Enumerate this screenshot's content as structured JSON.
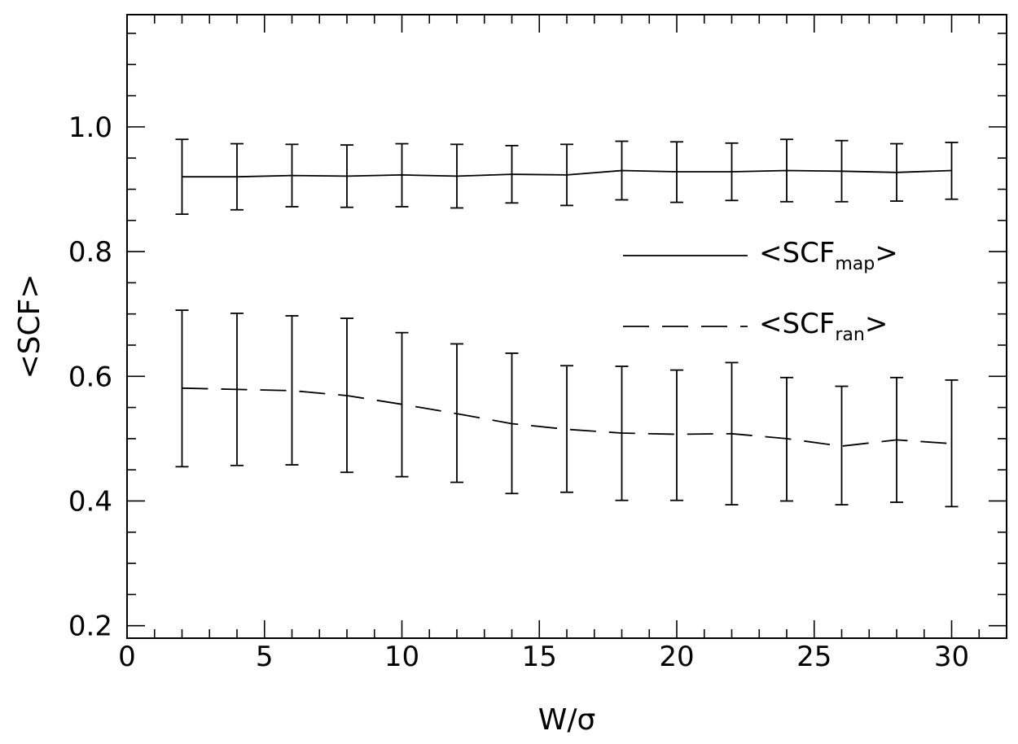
{
  "chart_data": {
    "type": "line",
    "xlabel": "W/σ",
    "ylabel": "<SCF>",
    "xlim": [
      0,
      32
    ],
    "ylim": [
      0.18,
      1.18
    ],
    "x_ticks": [
      0,
      5,
      10,
      15,
      20,
      25,
      30
    ],
    "y_ticks": [
      0.2,
      0.4,
      0.6,
      0.8,
      1.0
    ],
    "x_tick_labels": [
      "0",
      "5",
      "10",
      "15",
      "20",
      "25",
      "30"
    ],
    "y_tick_labels": [
      "0.2",
      "0.4",
      "0.6",
      "0.8",
      "1.0"
    ],
    "x_minor_step": 1,
    "y_minor_step": 0.05,
    "grid": false,
    "legend_position": "right-center",
    "x": [
      2,
      4,
      6,
      8,
      10,
      12,
      14,
      16,
      18,
      20,
      22,
      24,
      26,
      28,
      30
    ],
    "series": [
      {
        "legend_main": "<SCF",
        "legend_sub": "map",
        "legend_close": ">",
        "line_style": "solid",
        "values": [
          0.92,
          0.92,
          0.922,
          0.921,
          0.923,
          0.921,
          0.924,
          0.923,
          0.93,
          0.928,
          0.928,
          0.93,
          0.929,
          0.927,
          0.93
        ],
        "err_low": [
          0.86,
          0.867,
          0.872,
          0.871,
          0.872,
          0.87,
          0.878,
          0.874,
          0.883,
          0.879,
          0.882,
          0.88,
          0.88,
          0.881,
          0.884
        ],
        "err_high": [
          0.98,
          0.973,
          0.972,
          0.971,
          0.973,
          0.972,
          0.97,
          0.972,
          0.977,
          0.976,
          0.974,
          0.98,
          0.978,
          0.973,
          0.975
        ]
      },
      {
        "legend_main": "<SCF",
        "legend_sub": "ran",
        "legend_close": ">",
        "line_style": "dashed",
        "values": [
          0.581,
          0.579,
          0.577,
          0.569,
          0.555,
          0.54,
          0.524,
          0.515,
          0.509,
          0.507,
          0.508,
          0.5,
          0.488,
          0.498,
          0.492
        ],
        "err_low": [
          0.455,
          0.457,
          0.458,
          0.446,
          0.439,
          0.43,
          0.412,
          0.414,
          0.401,
          0.401,
          0.394,
          0.4,
          0.394,
          0.398,
          0.391
        ],
        "err_high": [
          0.706,
          0.701,
          0.697,
          0.693,
          0.67,
          0.652,
          0.637,
          0.617,
          0.616,
          0.61,
          0.622,
          0.598,
          0.584,
          0.598,
          0.594
        ]
      }
    ]
  }
}
